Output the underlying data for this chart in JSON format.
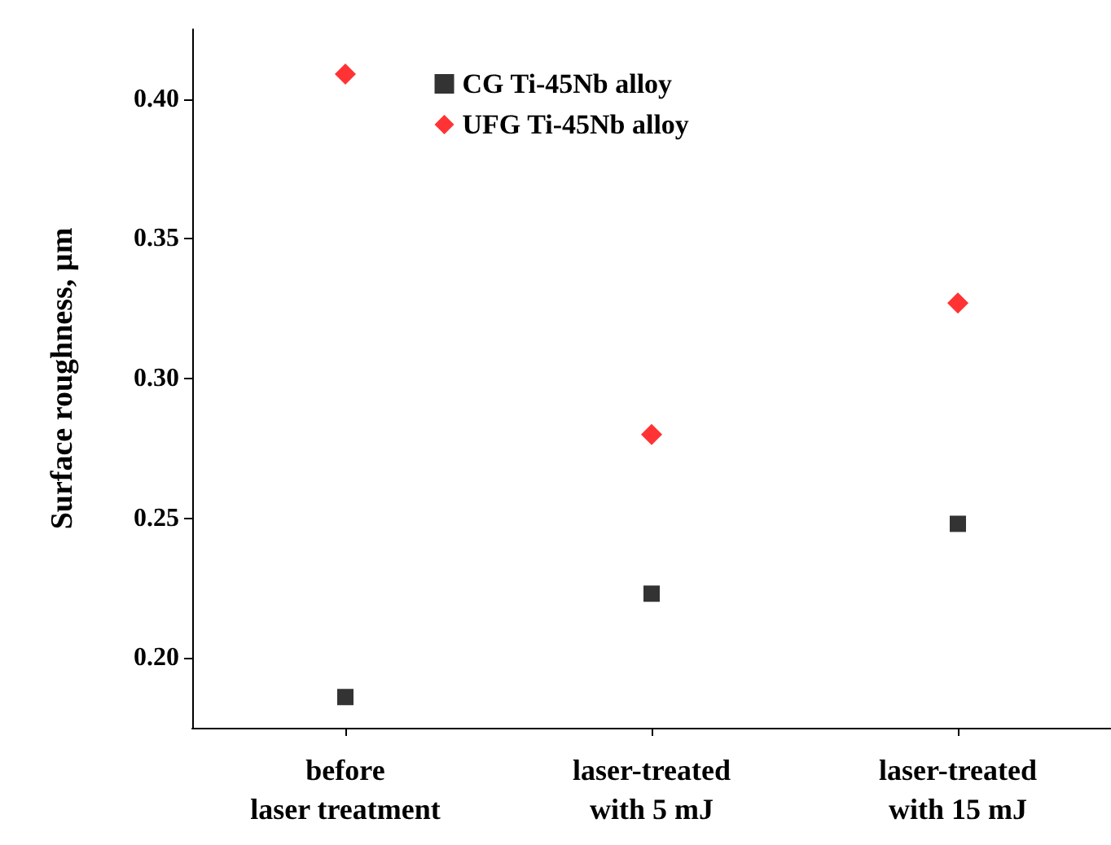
{
  "chart_data": {
    "type": "scatter",
    "ylabel": "Surface roughness, µm",
    "categories": [
      "before\nlaser treatment",
      "laser-treated\nwith 5 mJ",
      "laser-treated\nwith 15 mJ"
    ],
    "series": [
      {
        "name": "CG Ti-45Nb alloy",
        "color": "#000000",
        "marker": "square",
        "values": [
          0.186,
          0.223,
          0.248
        ]
      },
      {
        "name": "UFG Ti-45Nb alloy",
        "color": "#ff0000",
        "marker": "diamond",
        "values": [
          0.409,
          0.28,
          0.327
        ]
      }
    ],
    "ylim": [
      0.175,
      0.425
    ],
    "yticks": [
      {
        "value": 0.2,
        "label": "0.20"
      },
      0.25,
      {
        "value": 0.3,
        "label": "0.30"
      },
      0.35,
      {
        "value": 0.4,
        "label": "0.40"
      }
    ],
    "grid": false,
    "legend": "top"
  }
}
